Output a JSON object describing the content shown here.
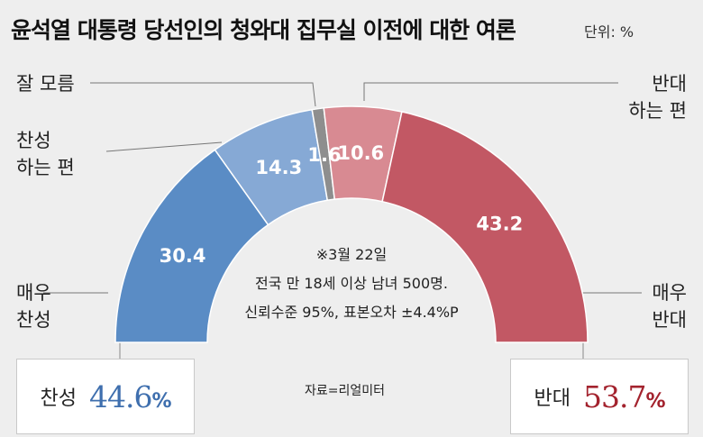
{
  "title": "윤석열 대통령 당선인의 청와대 집무실 이전에 대한 여론",
  "unit": "단위: %",
  "note": [
    "※3월 22일",
    "전국 만 18세 이상 남녀 500명.",
    "신뢰수준 95%, 표본오차 ±4.4%P"
  ],
  "source": "자료=리얼미터",
  "summary": {
    "support": {
      "label": "찬성",
      "value": "44.6",
      "unit": "%",
      "color": "#3f6fae"
    },
    "oppose": {
      "label": "반대",
      "value": "53.7",
      "unit": "%",
      "color": "#a3232e"
    }
  },
  "chart_data": {
    "type": "pie",
    "shape": "semicircle donut",
    "categories": [
      "매우 찬성",
      "찬성하는 편",
      "잘 모름",
      "반대하는 편",
      "매우 반대"
    ],
    "values": [
      30.4,
      14.3,
      1.6,
      10.6,
      43.2
    ],
    "value_labels": [
      "30.4",
      "14.3",
      "1.6",
      "10.6",
      "43.2"
    ],
    "category_label_lines": [
      [
        "매우",
        "찬성"
      ],
      [
        "찬성",
        "하는 편"
      ],
      [
        "잘 모름"
      ],
      [
        "반대",
        "하는 편"
      ],
      [
        "매우",
        "반대"
      ]
    ],
    "colors": [
      "#5a8cc5",
      "#86a9d5",
      "#8e8e8e",
      "#d88a92",
      "#c25864"
    ]
  }
}
